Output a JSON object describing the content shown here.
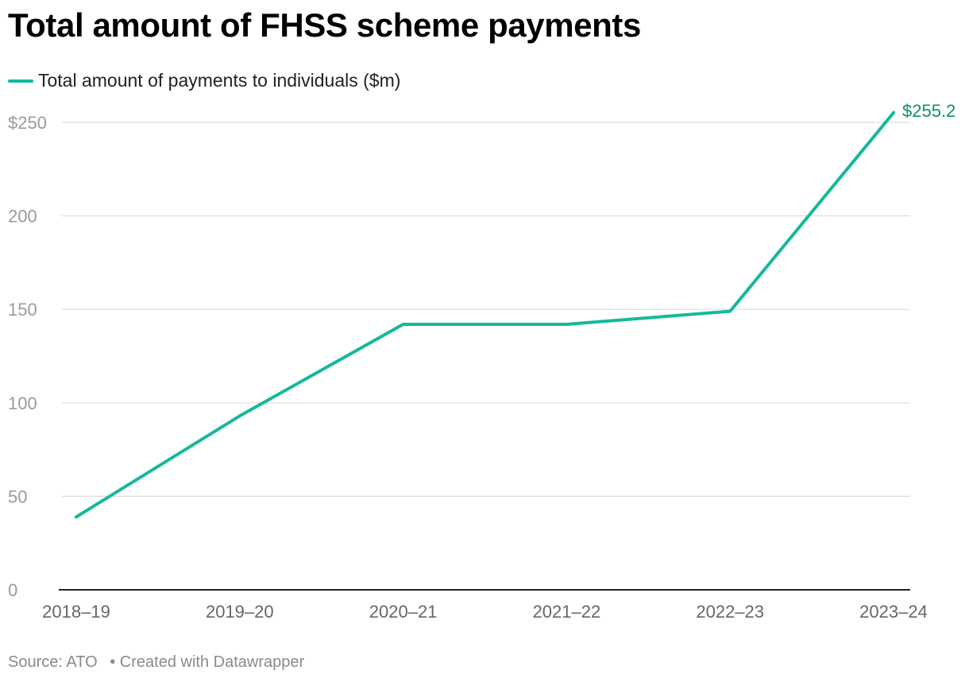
{
  "title": "Total amount of FHSS scheme payments",
  "legend": {
    "label": "Total amount of payments to individuals ($m)"
  },
  "colors": {
    "series": "#16b89a",
    "end_label": "#0f8f74",
    "grid": "#dddddd",
    "axis": "#222222"
  },
  "footer": {
    "source": "Source: ATO",
    "separator": "•",
    "credit": "Created with Datawrapper"
  },
  "chart_data": {
    "type": "line",
    "title": "Total amount of FHSS scheme payments",
    "xlabel": "",
    "ylabel": "",
    "x": [
      "2018–19",
      "2019–20",
      "2020–21",
      "2021–22",
      "2022–23",
      "2023–24"
    ],
    "series": [
      {
        "name": "Total amount of payments to individuals ($m)",
        "values": [
          39,
          93,
          142,
          142,
          149,
          255.2
        ]
      }
    ],
    "ylim": [
      0,
      250
    ],
    "yticks": [
      0,
      50,
      100,
      150,
      200,
      250
    ],
    "ytick_labels": [
      "0",
      "50",
      "100",
      "150",
      "200",
      "$250"
    ],
    "end_label": "$255.2",
    "grid": true,
    "legend_position": "top-left"
  }
}
